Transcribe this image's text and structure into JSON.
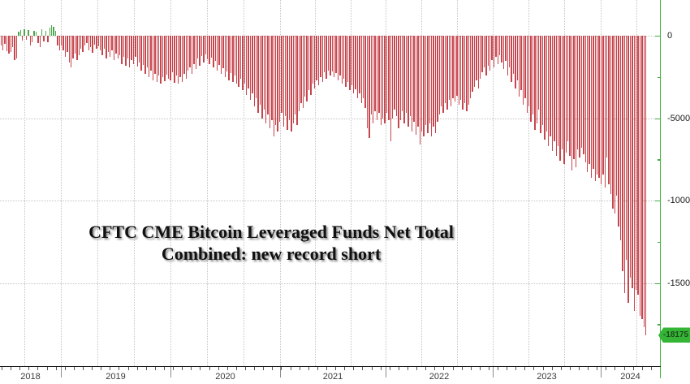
{
  "title": {
    "line1": "CFTC CME Bitcoin Leveraged Funds Net Total",
    "line2": "Combined: new record short"
  },
  "last_value_badge": "-18175",
  "chart_data": {
    "type": "bar",
    "title": "CFTC CME Bitcoin Leveraged Funds Net Total Combined: new record short",
    "xlabel": "",
    "ylabel": "",
    "frequency": "weekly",
    "ylim": [
      -20050,
      2170
    ],
    "grid": true,
    "y_ticks": [
      0,
      -5000,
      -10000,
      -15000
    ],
    "y_tick_labels": [
      "0",
      "-5000",
      "-10000",
      "-15000"
    ],
    "y_minor_ticks": [
      -2500,
      -7500,
      -12500,
      -17500
    ],
    "years": [
      "2018",
      "2019",
      "2020",
      "2021",
      "2022",
      "2023",
      "2024"
    ],
    "year_boundaries_x": [
      0,
      75,
      210,
      345,
      475,
      607,
      740,
      813
    ],
    "annotation": {
      "label": "-18175",
      "value": -18175
    },
    "colors": {
      "bar_negative": "#c7454d",
      "bar_positive": "#4fa54f",
      "axis_green": "#3fae3f",
      "axis_black": "#111111",
      "badge_bg": "#35b535",
      "badge_text": "#1c4b1c",
      "grid": "#c3c3c3"
    },
    "values": [
      -600,
      -870,
      -500,
      -950,
      -1100,
      -1000,
      -700,
      -1500,
      -1400,
      250,
      350,
      -300,
      400,
      -250,
      350,
      -600,
      -400,
      300,
      250,
      -450,
      -700,
      380,
      -350,
      280,
      -400,
      500,
      650,
      550,
      300,
      -600,
      -900,
      -600,
      -900,
      -1300,
      -1000,
      -1600,
      -1900,
      -1400,
      -1100,
      -1500,
      -1200,
      -800,
      -1000,
      -600,
      -450,
      -900,
      -700,
      -1050,
      -550,
      -800,
      -650,
      -900,
      -1200,
      -800,
      -1400,
      -1000,
      -1300,
      -900,
      -1500,
      -1100,
      -1400,
      -1200,
      -1700,
      -1300,
      -1800,
      -1400,
      -1900,
      -1500,
      -1700,
      -1300,
      -1850,
      -1600,
      -2100,
      -1750,
      -2300,
      -1900,
      -2500,
      -2100,
      -2700,
      -2300,
      -2800,
      -2400,
      -2900,
      -2500,
      -2750,
      -2350,
      -2600,
      -2700,
      -2200,
      -2850,
      -2400,
      -2900,
      -2500,
      -2800,
      -2300,
      -2600,
      -2100,
      -1900,
      -2300,
      -1700,
      -2000,
      -1400,
      -1800,
      -1250,
      -1600,
      -1150,
      -1450,
      -1700,
      -1350,
      -1900,
      -1550,
      -2100,
      -1750,
      -2300,
      -1950,
      -2500,
      -2150,
      -2700,
      -2250,
      -2800,
      -2400,
      -2900,
      -3100,
      -2600,
      -3300,
      -2900,
      -3600,
      -3200,
      -3900,
      -3500,
      -4300,
      -3800,
      -4700,
      -4200,
      -5000,
      -4500,
      -5300,
      -4800,
      -5600,
      -5100,
      -6100,
      -5400,
      -5800,
      -5200,
      -4700,
      -5500,
      -4900,
      -5700,
      -5100,
      -5800,
      -5300,
      -4800,
      -5400,
      -4600,
      -4100,
      -4400,
      -3700,
      -4000,
      -3300,
      -3600,
      -2900,
      -3200,
      -2700,
      -3000,
      -2500,
      -2800,
      -2200,
      -2600,
      -2100,
      -2400,
      -2150,
      -2500,
      -2250,
      -2700,
      -2400,
      -2900,
      -2600,
      -3100,
      -2800,
      -3300,
      -3000,
      -3500,
      -3250,
      -3800,
      -3500,
      -4100,
      -3800,
      -4400,
      -5600,
      -6200,
      -4800,
      -5300,
      -4600,
      -5100,
      -4700,
      -5400,
      -5000,
      -5300,
      -4700,
      -5100,
      -6400,
      -5000,
      -4500,
      -4900,
      -5600,
      -5100,
      -4600,
      -5300,
      -4700,
      -5500,
      -4900,
      -5800,
      -5200,
      -6000,
      -5500,
      -6600,
      -5800,
      -6100,
      -5400,
      -5900,
      -5300,
      -6100,
      -5500,
      -5900,
      -5200,
      -4800,
      -4300,
      -4700,
      -4100,
      -4500,
      -3900,
      -4300,
      -3800,
      -4000,
      -3650,
      -4200,
      -3900,
      -4500,
      -4100,
      -4600,
      -4200,
      -3800,
      -3400,
      -3100,
      -2700,
      -3200,
      -2600,
      -2200,
      -1900,
      -2400,
      -1800,
      -2100,
      -1500,
      -1900,
      -1300,
      -1700,
      -1200,
      -1600,
      -2000,
      -1550,
      -2400,
      -1900,
      -2800,
      -2300,
      -3200,
      -2700,
      -3700,
      -3300,
      -4200,
      -3800,
      -4700,
      -4300,
      -5200,
      -4800,
      -5700,
      -5300,
      -4500,
      -5900,
      -5400,
      -6300,
      -5800,
      -6700,
      -6100,
      -7000,
      -6400,
      -7300,
      -6700,
      -7600,
      -6900,
      -7800,
      -7100,
      -6400,
      -7300,
      -8200,
      -7500,
      -8000,
      -6900,
      -7400,
      -6800,
      -7200,
      -7700,
      -8300,
      -7800,
      -8600,
      -8100,
      -8800,
      -8400,
      -8600,
      -9000,
      -8400,
      -9200,
      -7400,
      -9000,
      -9600,
      -10500,
      -10800,
      -9700,
      -11600,
      -12400,
      -14300,
      -15600,
      -13600,
      -16200,
      -14700,
      -15300,
      -16700,
      -15400,
      -15700,
      -17000,
      -17200,
      -17700,
      -18175
    ]
  }
}
